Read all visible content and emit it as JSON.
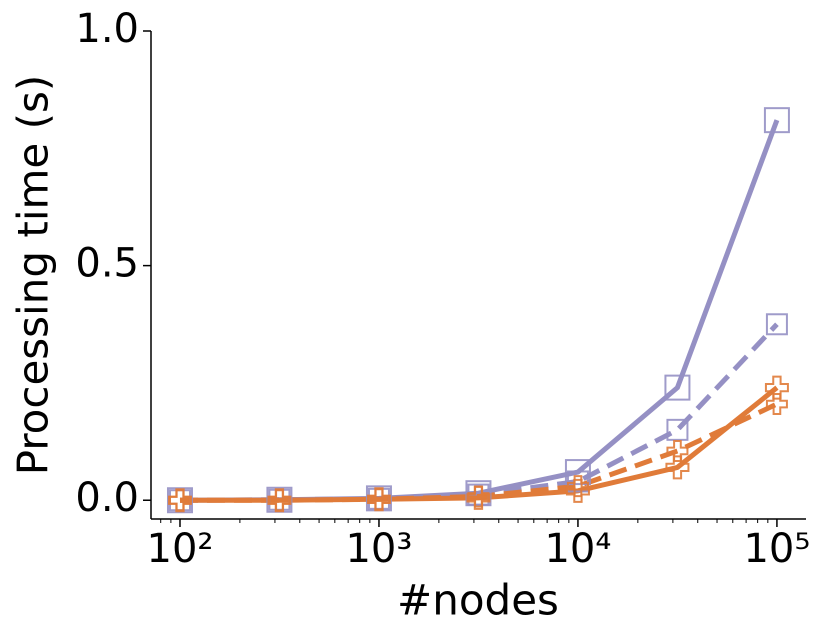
{
  "chart_data": {
    "type": "line",
    "x_label": "#nodes",
    "y_label": "Processing time (s)",
    "x": [
      100,
      316,
      1000,
      3162,
      10000,
      31623,
      100000
    ],
    "xscale": "log",
    "xlim": [
      71.5,
      140000
    ],
    "xticks": [
      {
        "value": 100,
        "label": "10²"
      },
      {
        "value": 1000,
        "label": "10³"
      },
      {
        "value": 10000,
        "label": "10⁴"
      },
      {
        "value": 100000,
        "label": "10⁵"
      }
    ],
    "ylim": [
      -0.04,
      1.0
    ],
    "yticks": [
      {
        "value": 0,
        "label": "0.0"
      },
      {
        "value": 0.5,
        "label": "0.5"
      },
      {
        "value": 1,
        "label": "1.0"
      }
    ],
    "series": [
      {
        "color": "#9590c4",
        "linestyle": "solid",
        "marker": "square",
        "marker_size": 24,
        "values": [
          0.0,
          0.001,
          0.004,
          0.015,
          0.06,
          0.24,
          0.81
        ]
      },
      {
        "color": "#9590c4",
        "linestyle": "dashed",
        "marker": "square",
        "marker_size": 20,
        "values": [
          0.0,
          0.001,
          0.003,
          0.012,
          0.04,
          0.15,
          0.375
        ]
      },
      {
        "color": "#e07b39",
        "linestyle": "dashed",
        "marker": "plus",
        "marker_size": 20,
        "values": [
          0.0,
          0.0,
          0.002,
          0.008,
          0.03,
          0.105,
          0.205
        ]
      },
      {
        "color": "#e07b39",
        "linestyle": "solid",
        "marker": "plus",
        "marker_size": 22,
        "values": [
          0.0,
          0.0,
          0.002,
          0.005,
          0.02,
          0.07,
          0.24
        ]
      }
    ]
  }
}
